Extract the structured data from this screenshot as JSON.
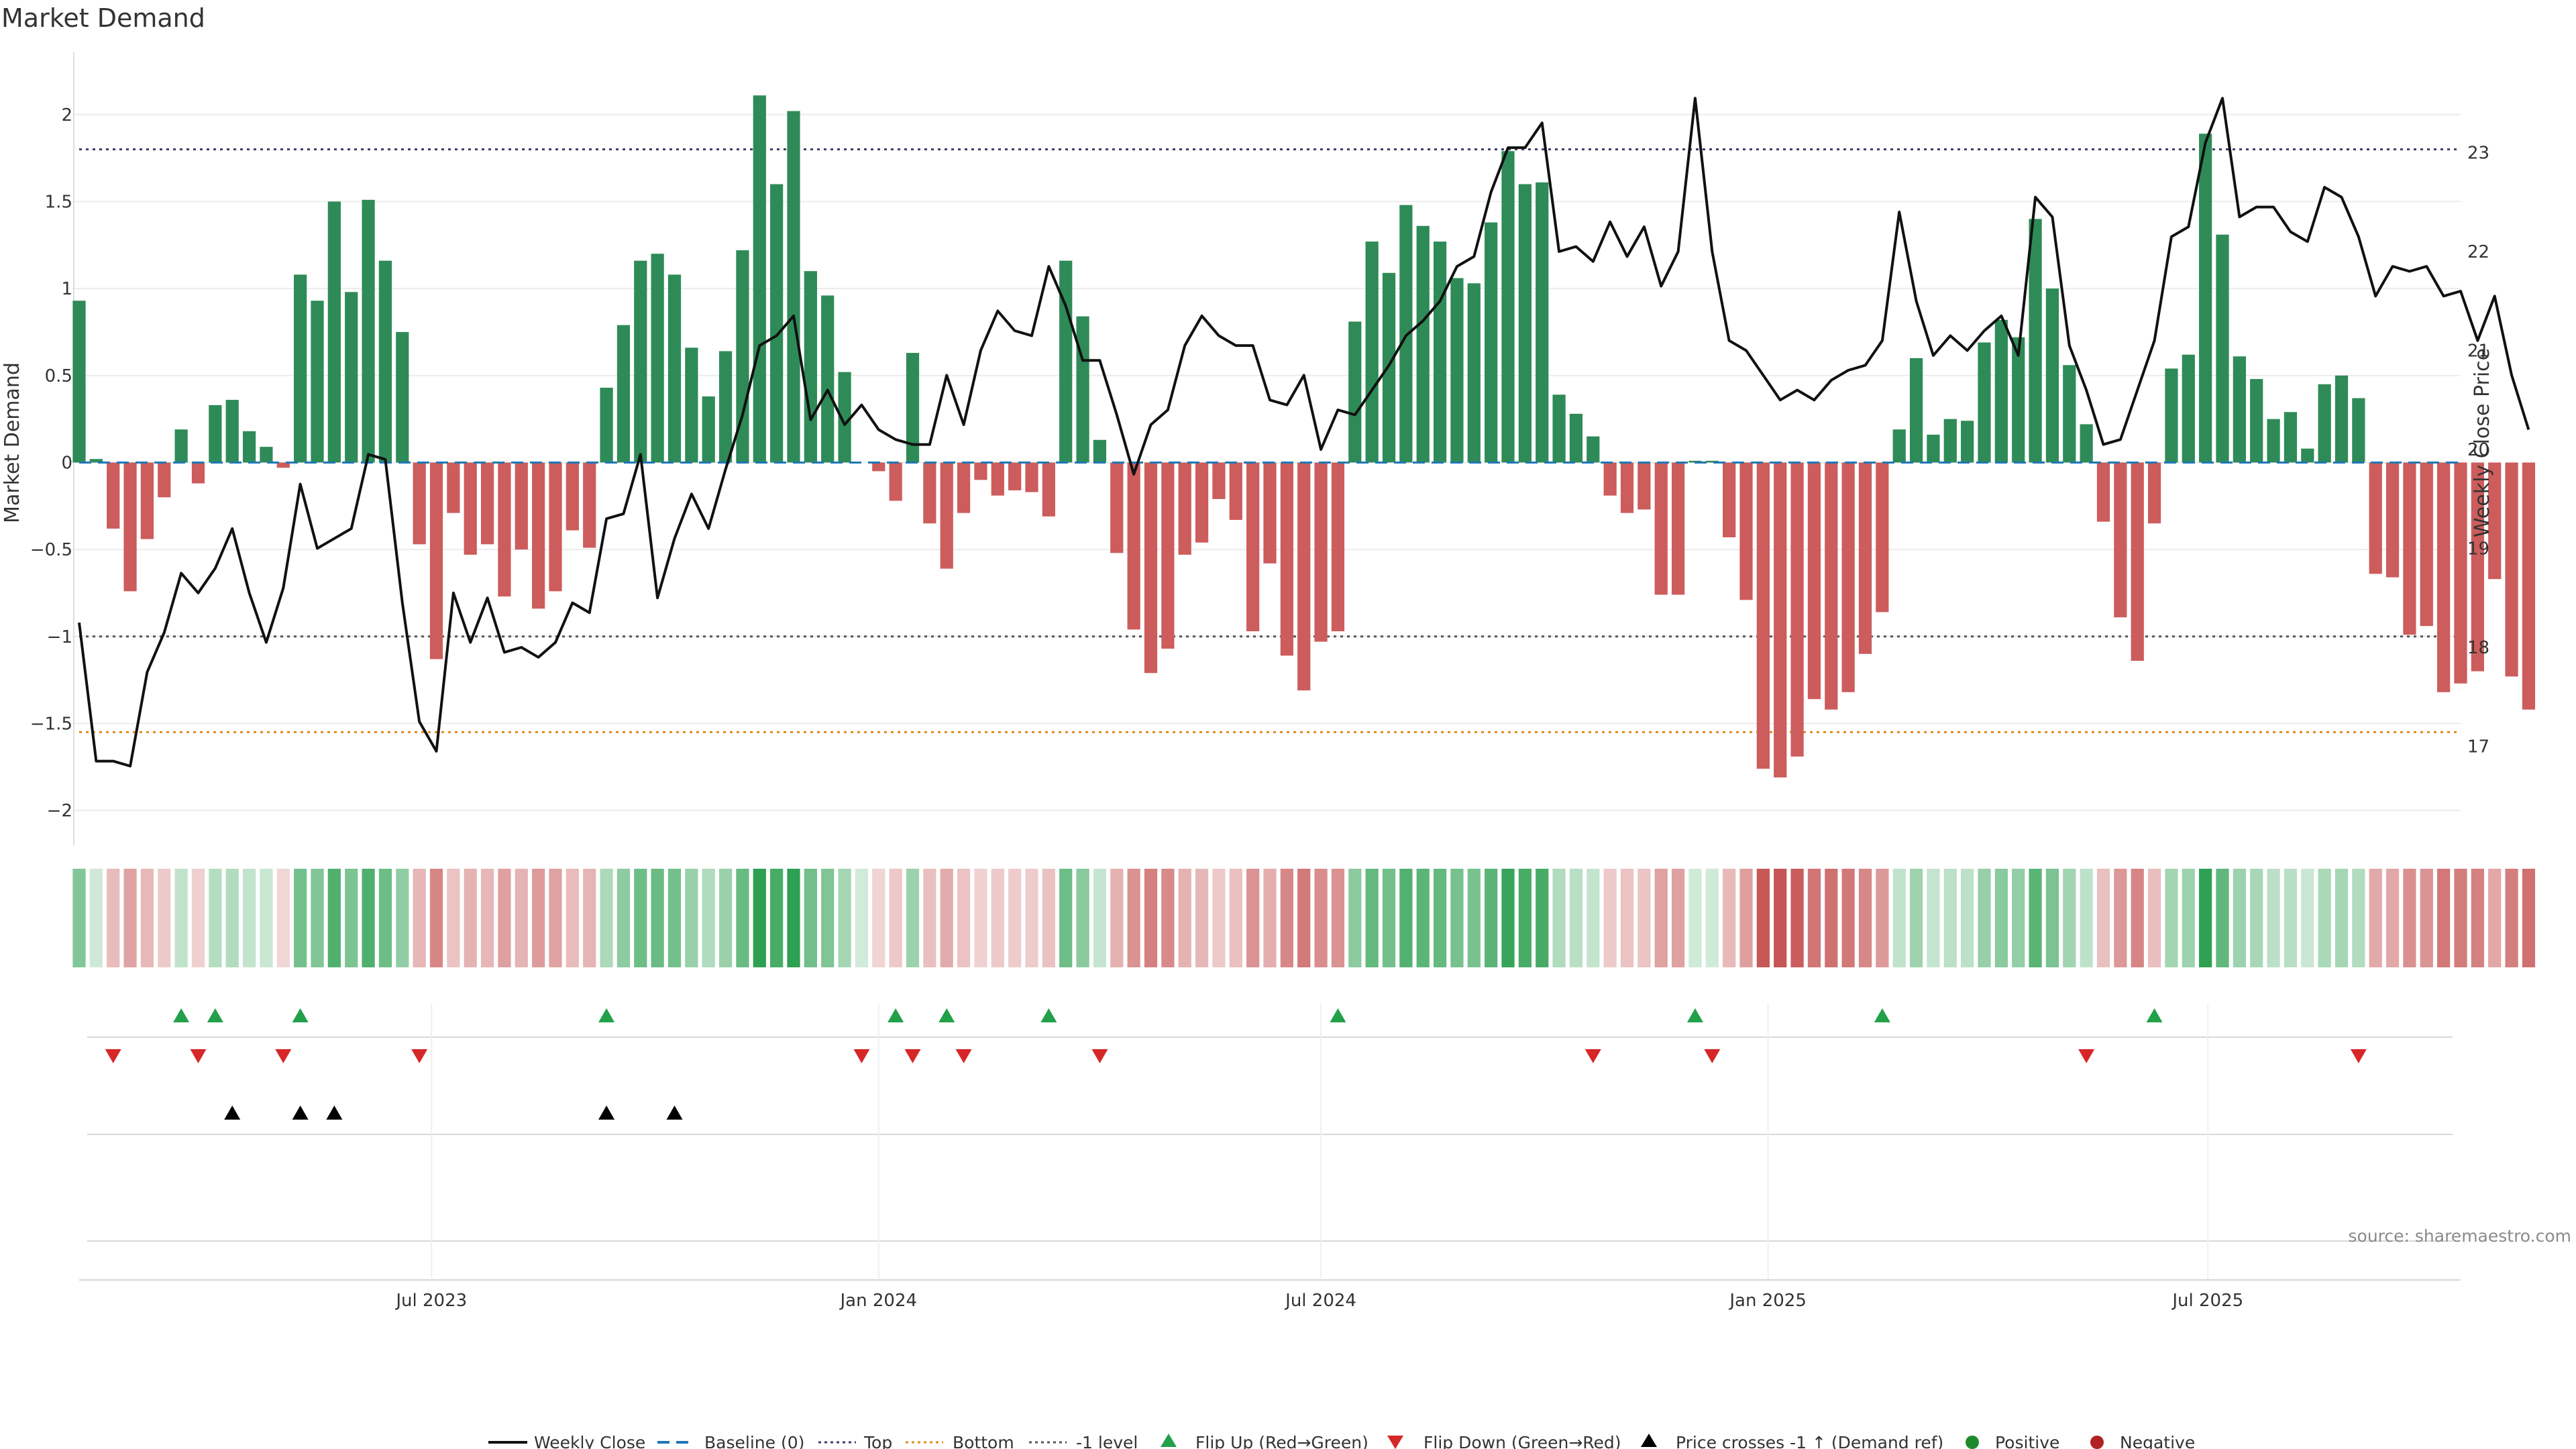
{
  "chart_data": {
    "type": "bar",
    "title": "Market Demand",
    "ylabel": "Market Demand",
    "y2label": "Weekly Close Price",
    "ylim": [
      -2.2,
      2.35
    ],
    "y2lim": [
      16,
      24
    ],
    "yticks": [
      "2",
      "1.5",
      "1",
      "0.5",
      "0",
      "−0.5",
      "−1",
      "−1.5",
      "−2"
    ],
    "ytick_values": [
      2,
      1.5,
      1,
      0.5,
      0,
      -0.5,
      -1,
      -1.5,
      -2
    ],
    "y2ticks": [
      "23",
      "22",
      "21",
      "20",
      "19",
      "18",
      "17"
    ],
    "y2tick_values": [
      23,
      22,
      21,
      20,
      19,
      18,
      17
    ],
    "x_start": "2023-02-06",
    "x_step_days": 7,
    "x_end": "2025-10-13",
    "xticks": [
      "Jul 2023",
      "Jan 2024",
      "Jul 2024",
      "Jan 2025",
      "Jul 2025"
    ],
    "xtick_dates": [
      "2023-07-01",
      "2024-01-01",
      "2024-07-01",
      "2025-01-01",
      "2025-07-01"
    ],
    "reference_levels": {
      "top": 1.8,
      "bottom": -1.55,
      "minus_one": -1.0,
      "baseline": 0
    },
    "demand": [
      0.93,
      0.02,
      -0.38,
      -0.74,
      -0.44,
      -0.2,
      0.19,
      -0.12,
      0.33,
      0.36,
      0.18,
      0.09,
      -0.03,
      1.08,
      0.93,
      1.5,
      0.98,
      1.51,
      1.16,
      0.75,
      -0.47,
      -1.13,
      -0.29,
      -0.53,
      -0.47,
      -0.77,
      -0.5,
      -0.84,
      -0.74,
      -0.39,
      -0.49,
      0.43,
      0.79,
      1.16,
      1.2,
      1.08,
      0.66,
      0.38,
      0.64,
      1.22,
      2.11,
      1.6,
      2.02,
      1.1,
      0.96,
      0.52,
      0,
      -0.05,
      -0.22,
      0.63,
      -0.35,
      -0.61,
      -0.29,
      -0.1,
      -0.19,
      -0.16,
      -0.17,
      -0.31,
      1.16,
      0.84,
      0.13,
      -0.52,
      -0.96,
      -1.21,
      -1.07,
      -0.53,
      -0.46,
      -0.21,
      -0.33,
      -0.97,
      -0.58,
      -1.11,
      -1.31,
      -1.03,
      -0.97,
      0.81,
      1.27,
      1.09,
      1.48,
      1.36,
      1.27,
      1.06,
      1.03,
      1.38,
      1.79,
      1.6,
      1.61,
      0.39,
      0.28,
      0.15,
      -0.19,
      -0.29,
      -0.27,
      -0.76,
      -0.76,
      0.01,
      0.01,
      -0.43,
      -0.79,
      -1.76,
      -1.81,
      -1.69,
      -1.36,
      -1.42,
      -1.32,
      -1.1,
      -0.86,
      0.19,
      0.6,
      0.16,
      0.25,
      0.24,
      0.69,
      0.82,
      0.72,
      1.4,
      1.0,
      0.56,
      0.22,
      -0.34,
      -0.89,
      -1.14,
      -0.35,
      0.54,
      0.62,
      1.89,
      1.31,
      0.61,
      0.48,
      0.25,
      0.29,
      0.08,
      0.45,
      0.5,
      0.37,
      -0.64,
      -0.66,
      -0.99,
      -0.94,
      -1.32,
      -1.27,
      -1.2,
      -0.67,
      -1.23,
      -1.42
    ],
    "close": [
      18.25,
      16.85,
      16.85,
      16.8,
      17.75,
      18.15,
      18.75,
      18.55,
      18.8,
      19.2,
      18.55,
      18.05,
      18.6,
      19.65,
      19.0,
      19.1,
      19.2,
      19.95,
      19.9,
      18.45,
      17.25,
      16.95,
      18.55,
      18.05,
      18.5,
      17.95,
      18.0,
      17.9,
      18.05,
      18.45,
      18.35,
      19.3,
      19.35,
      19.95,
      18.5,
      19.1,
      19.55,
      19.2,
      19.8,
      20.35,
      21.05,
      21.15,
      21.35,
      20.3,
      20.6,
      20.25,
      20.45,
      20.2,
      20.1,
      20.05,
      20.05,
      20.75,
      20.25,
      21.0,
      21.4,
      21.2,
      21.15,
      21.85,
      21.45,
      20.9,
      20.9,
      20.35,
      19.75,
      20.25,
      20.4,
      21.05,
      21.35,
      21.15,
      21.05,
      21.05,
      20.5,
      20.45,
      20.75,
      20.0,
      20.4,
      20.35,
      20.6,
      20.85,
      21.15,
      21.3,
      21.5,
      21.85,
      21.95,
      22.6,
      23.05,
      23.05,
      23.3,
      22.0,
      22.05,
      21.9,
      22.3,
      21.95,
      22.25,
      21.65,
      22.0,
      23.55,
      22.0,
      21.1,
      21.0,
      20.75,
      20.5,
      20.6,
      20.5,
      20.7,
      20.8,
      20.85,
      21.1,
      22.4,
      21.5,
      20.95,
      21.15,
      21.0,
      21.2,
      21.35,
      20.95,
      22.55,
      22.35,
      21.05,
      20.6,
      20.05,
      20.1,
      20.6,
      21.1,
      22.15,
      22.25,
      23.1,
      23.55,
      22.35,
      22.45,
      22.45,
      22.2,
      22.1,
      22.65,
      22.55,
      22.15,
      21.55,
      21.85,
      21.8,
      21.85,
      21.55,
      21.6,
      21.1,
      21.55,
      20.75,
      20.2
    ]
  },
  "subplots": {
    "flip_up_indices": [
      6,
      8,
      13,
      31,
      48,
      51,
      57,
      74,
      95,
      106,
      122
    ],
    "flip_down_indices": [
      2,
      7,
      12,
      20,
      46,
      49,
      52,
      60,
      89,
      96,
      118,
      134
    ],
    "cross_minus_one_indices": [
      9,
      13,
      15,
      31,
      35
    ]
  },
  "colors": {
    "positive": "#2e8b57",
    "negative": "#cd5c5c",
    "close_line": "#111111",
    "baseline": "#1f77b4",
    "top_line": "#3c3c6a",
    "bottom_line": "#e08a1e",
    "minus_one_line": "#555555",
    "flip_up": "#22a04a",
    "flip_down": "#d62728",
    "cross": "#000000",
    "legend_positive_dot": "#1e8a2e",
    "legend_negative_dot": "#b22222"
  },
  "legend": {
    "weekly_close": "Weekly Close",
    "baseline": "Baseline (0)",
    "top": "Top",
    "bottom": "Bottom",
    "minus_one": "-1 level",
    "flip_up": "Flip Up (Red→Green)",
    "flip_down": "Flip Down (Green→Red)",
    "cross": "Price crosses -1 ↑ (Demand ref)",
    "positive": "Positive",
    "negative": "Negative"
  },
  "source": "source: sharemaestro.com"
}
